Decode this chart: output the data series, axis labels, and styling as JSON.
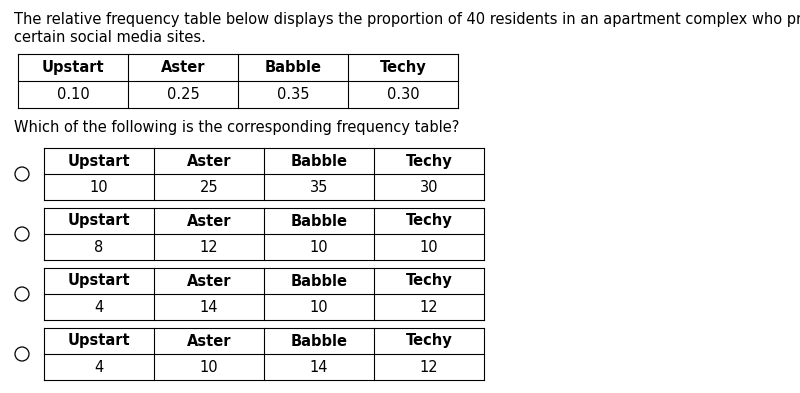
{
  "intro_text_line1": "The relative frequency table below displays the proportion of 40 residents in an apartment complex who prefer",
  "intro_text_line2": "certain social media sites.",
  "question_text": "Which of the following is the corresponding frequency table?",
  "headers": [
    "Upstart",
    "Aster",
    "Babble",
    "Techy"
  ],
  "rel_freq_values": [
    "0.10",
    "0.25",
    "0.35",
    "0.30"
  ],
  "options": [
    [
      "10",
      "25",
      "35",
      "30"
    ],
    [
      "8",
      "12",
      "10",
      "10"
    ],
    [
      "4",
      "14",
      "10",
      "12"
    ],
    [
      "4",
      "10",
      "14",
      "12"
    ]
  ],
  "bg_color": "#ffffff",
  "text_color": "#000000",
  "font_size_body": 10.5,
  "font_size_table": 10.5
}
